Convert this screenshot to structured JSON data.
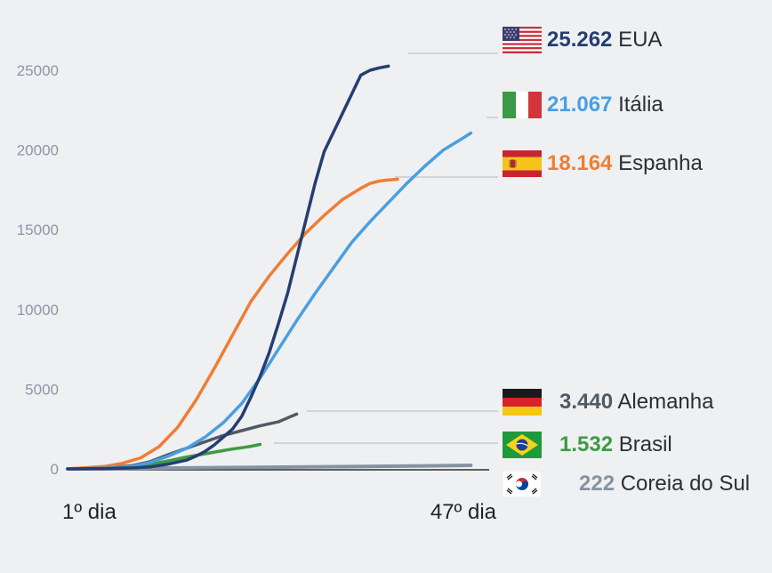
{
  "chart_data": {
    "type": "line",
    "title": "",
    "xlabel": "",
    "ylabel": "",
    "x_tick_labels": [
      "1º dia",
      "47º dia"
    ],
    "x_range": [
      1,
      47
    ],
    "ylim": [
      0,
      25000
    ],
    "y_ticks": [
      0,
      5000,
      10000,
      15000,
      20000,
      25000
    ],
    "grid": false,
    "series": [
      {
        "key": "usa",
        "name": "EUA",
        "value_label": "25.262",
        "color": "#243e72",
        "x": [
          1,
          5,
          8,
          10,
          12,
          14,
          15,
          16,
          17,
          18,
          19,
          20,
          21,
          22,
          23,
          24,
          25,
          26,
          27,
          28,
          29,
          30,
          31,
          32,
          33,
          34,
          35,
          36
        ],
        "y": [
          0,
          20,
          60,
          120,
          300,
          550,
          800,
          1100,
          1500,
          2000,
          2500,
          3300,
          4500,
          5800,
          7300,
          9100,
          11000,
          13300,
          15600,
          17900,
          19900,
          21100,
          22300,
          23500,
          24700,
          25000,
          25150,
          25262
        ]
      },
      {
        "key": "italy",
        "name": "Itália",
        "value_label": "21.067",
        "color": "#4a9fe0",
        "x": [
          1,
          5,
          8,
          10,
          12,
          14,
          16,
          18,
          20,
          22,
          24,
          26,
          28,
          30,
          32,
          34,
          36,
          38,
          40,
          42,
          44,
          45
        ],
        "y": [
          0,
          40,
          150,
          400,
          800,
          1300,
          2000,
          2900,
          4100,
          5700,
          7500,
          9300,
          11000,
          12600,
          14200,
          15500,
          16700,
          17900,
          19000,
          20000,
          20700,
          21067
        ]
      },
      {
        "key": "spain",
        "name": "Espanha",
        "value_label": "18.164",
        "color": "#ee7e35",
        "x": [
          1,
          5,
          7,
          9,
          11,
          13,
          15,
          17,
          19,
          21,
          23,
          25,
          27,
          29,
          31,
          33,
          34,
          35,
          36,
          37
        ],
        "y": [
          0,
          150,
          350,
          700,
          1400,
          2600,
          4300,
          6300,
          8400,
          10500,
          12100,
          13500,
          14800,
          15900,
          16900,
          17600,
          17900,
          18050,
          18120,
          18164
        ]
      },
      {
        "key": "germany",
        "name": "Alemanha",
        "value_label": "3.440",
        "color": "#4e5a64",
        "x": [
          1,
          5,
          8,
          10,
          12,
          14,
          16,
          18,
          20,
          22,
          24,
          25,
          26
        ],
        "y": [
          0,
          40,
          200,
          450,
          900,
          1300,
          1700,
          2100,
          2400,
          2700,
          2950,
          3200,
          3440
        ]
      },
      {
        "key": "brazil",
        "name": "Brasil",
        "value_label": "1.532",
        "color": "#3e9a44",
        "x": [
          1,
          5,
          8,
          10,
          12,
          14,
          16,
          18,
          19,
          20,
          21,
          22
        ],
        "y": [
          0,
          30,
          120,
          280,
          500,
          750,
          950,
          1150,
          1250,
          1330,
          1420,
          1532
        ]
      },
      {
        "key": "korea",
        "name": "Coreia do Sul",
        "value_label": "222",
        "color": "#8593a2",
        "x": [
          1,
          10,
          20,
          30,
          40,
          45
        ],
        "y": [
          0,
          40,
          90,
          140,
          190,
          222
        ]
      }
    ]
  },
  "legend_order": [
    "usa",
    "italy",
    "spain",
    "germany",
    "brazil",
    "korea"
  ]
}
